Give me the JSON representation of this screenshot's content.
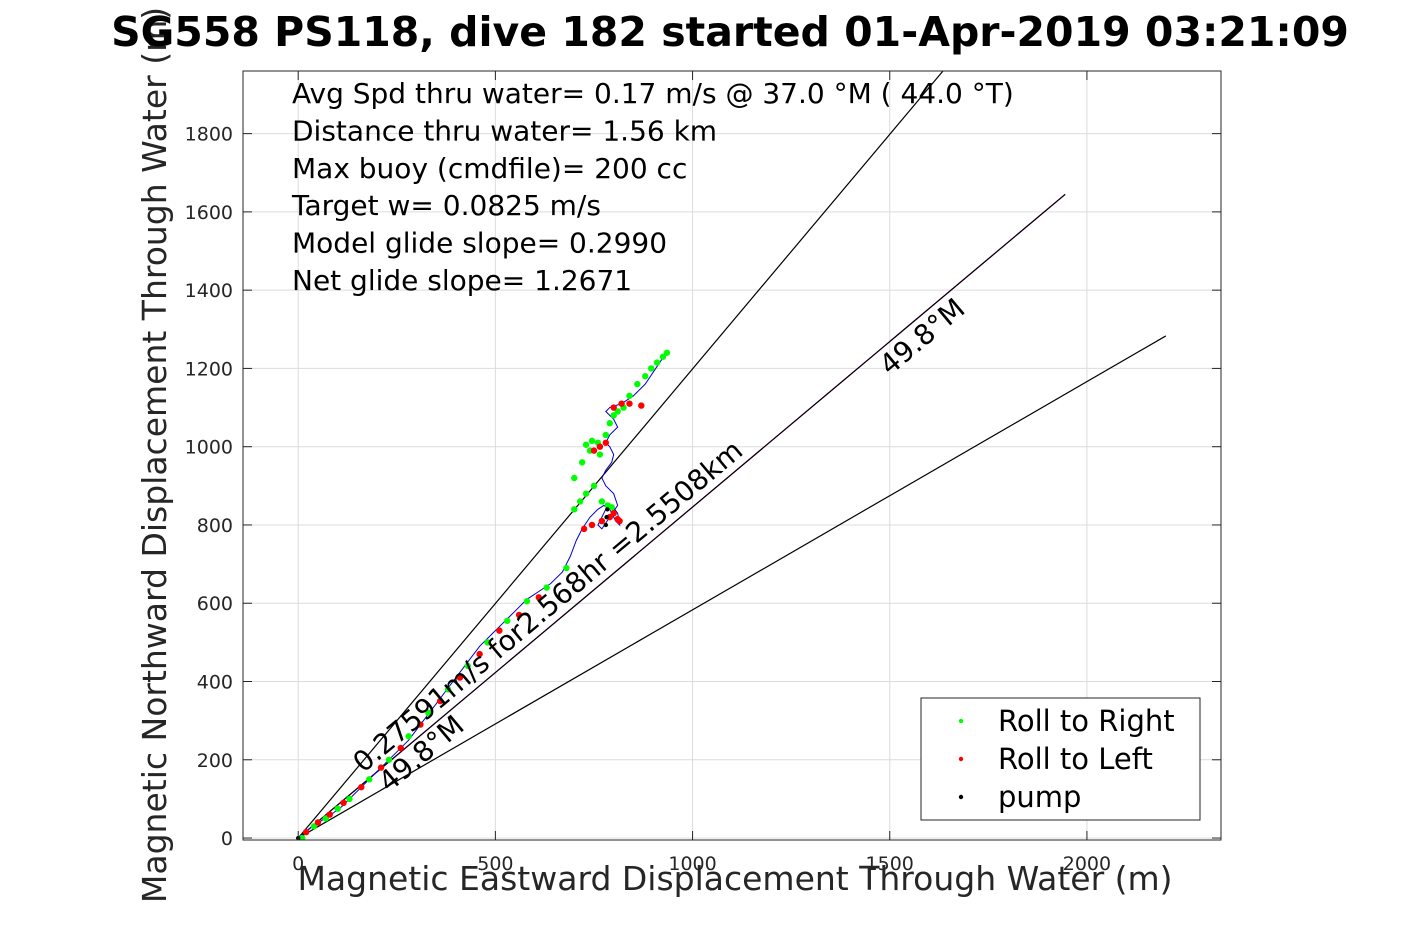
{
  "chart_data": {
    "type": "scatter",
    "title": "SG558 PS118, dive 182 started 01-Apr-2019 03:21:09",
    "xlabel": "Magnetic Eastward Displacement Through Water (m)",
    "ylabel": "Magnetic Northward Displacement Through Water (m)",
    "xlim": [
      -140,
      2340
    ],
    "ylim": [
      -5,
      1960
    ],
    "xticks": [
      0,
      500,
      1000,
      1500,
      2000
    ],
    "yticks": [
      0,
      200,
      400,
      600,
      800,
      1000,
      1200,
      1400,
      1600,
      1800
    ],
    "grid": true,
    "annotations": [
      "Avg Spd thru water=  0.17 m/s @  37.0 °M ( 44.0 °T)",
      "Distance thru water=  1.56 km",
      "Max buoy (cmdfile)= 200 cc",
      "Target w= 0.0825 m/s",
      "Model glide slope= 0.2990",
      "Net glide slope= 1.2671"
    ],
    "rotated_labels": [
      {
        "text": "0.27591m/s for2.568hr =2.5508km",
        "x": 165,
        "y": 165
      },
      {
        "text": "49.8°M",
        "x": 1500,
        "y": 1180
      },
      {
        "text": "49.8°M",
        "x": 230,
        "y": 115
      }
    ],
    "reference_lines": [
      {
        "name": "heading-49.8",
        "color": "#cc00cc",
        "x": [
          0,
          1945
        ],
        "y": [
          0,
          1645
        ]
      },
      {
        "name": "bound-upper",
        "color": "#000000",
        "x": [
          0,
          1635
        ],
        "y": [
          0,
          1960
        ]
      },
      {
        "name": "bound-mid",
        "color": "#000000",
        "x": [
          0,
          1945
        ],
        "y": [
          0,
          1645
        ]
      },
      {
        "name": "bound-lower",
        "color": "#000000",
        "x": [
          0,
          2200
        ],
        "y": [
          0,
          1283
        ]
      }
    ],
    "track": {
      "color": "#0000cc",
      "x": [
        0,
        30,
        60,
        90,
        110,
        130,
        160,
        190,
        220,
        250,
        280,
        310,
        340,
        370,
        400,
        430,
        460,
        490,
        520,
        550,
        580,
        610,
        640,
        670,
        690,
        705,
        720,
        740,
        760,
        775,
        790,
        800,
        805,
        815,
        810,
        795,
        780,
        770,
        760,
        770,
        790,
        810,
        800,
        780,
        770,
        780,
        795,
        800,
        790,
        780,
        790,
        810,
        800,
        780,
        790,
        820,
        850,
        880,
        900,
        920,
        940
      ],
      "y": [
        0,
        25,
        45,
        65,
        80,
        100,
        130,
        160,
        190,
        220,
        250,
        290,
        330,
        370,
        410,
        450,
        490,
        520,
        550,
        580,
        610,
        630,
        650,
        680,
        720,
        760,
        790,
        820,
        840,
        850,
        840,
        820,
        810,
        800,
        830,
        850,
        840,
        820,
        800,
        790,
        820,
        850,
        880,
        900,
        920,
        940,
        960,
        980,
        1000,
        1010,
        1030,
        1050,
        1070,
        1090,
        1100,
        1110,
        1130,
        1160,
        1190,
        1220,
        1245
      ]
    },
    "series": [
      {
        "name": "Roll to Right",
        "color": "#00ff00",
        "x": [
          10,
          40,
          70,
          100,
          130,
          180,
          230,
          280,
          330,
          380,
          430,
          480,
          530,
          580,
          630,
          680,
          700,
          715,
          730,
          750,
          770,
          785,
          795,
          700,
          720,
          740,
          760,
          780,
          730,
          745,
          765,
          790,
          800,
          810,
          825,
          840,
          860,
          880,
          895,
          910,
          925,
          935
        ],
        "y": [
          0,
          30,
          50,
          75,
          100,
          150,
          200,
          260,
          320,
          380,
          440,
          500,
          555,
          605,
          640,
          690,
          840,
          860,
          880,
          900,
          860,
          850,
          845,
          920,
          960,
          990,
          1010,
          1030,
          1005,
          1015,
          980,
          1060,
          1080,
          1090,
          1100,
          1130,
          1160,
          1180,
          1200,
          1215,
          1230,
          1240
        ]
      },
      {
        "name": "Roll to Left",
        "color": "#ff0000",
        "x": [
          20,
          50,
          80,
          115,
          160,
          210,
          260,
          310,
          360,
          410,
          460,
          510,
          560,
          610,
          725,
          745,
          770,
          790,
          800,
          810,
          815,
          780,
          765,
          750,
          800,
          820,
          840,
          870
        ],
        "y": [
          15,
          40,
          60,
          90,
          130,
          180,
          230,
          290,
          350,
          410,
          470,
          530,
          570,
          615,
          790,
          800,
          810,
          820,
          830,
          815,
          810,
          1010,
          1000,
          990,
          1100,
          1110,
          1110,
          1105
        ]
      },
      {
        "name": "pump",
        "color": "#000000",
        "x": [
          0,
          780,
          782,
          784
        ],
        "y": [
          0,
          800,
          820,
          840
        ]
      }
    ],
    "legend": {
      "placement": "bottom-right",
      "entries": [
        "Roll to Right",
        "Roll to Left",
        "pump"
      ]
    }
  }
}
